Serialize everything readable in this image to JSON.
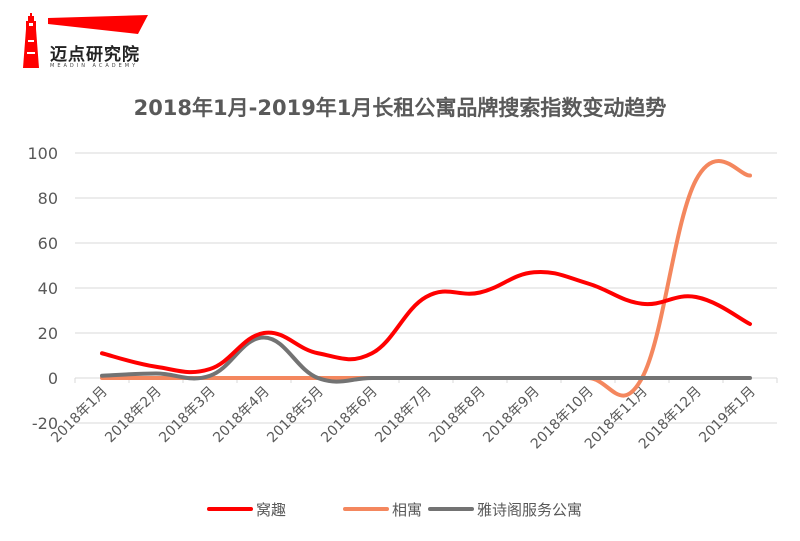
{
  "logo": {
    "name": "迈点研究院",
    "subtitle": "MEADIN ACADEMY",
    "color": "#ff0000"
  },
  "chart_data": {
    "type": "line",
    "title": "2018年1月-2019年1月长租公寓品牌搜索指数变动趋势",
    "xlabel": "",
    "ylabel": "",
    "ylim": [
      -20,
      100
    ],
    "yticks": [
      100,
      80,
      60,
      40,
      20,
      0,
      -20
    ],
    "grid": true,
    "legend_position": "bottom",
    "smooth": true,
    "categories": [
      "2018年1月",
      "2018年2月",
      "2018年3月",
      "2018年4月",
      "2018年5月",
      "2018年6月",
      "2018年7月",
      "2018年8月",
      "2018年9月",
      "2018年10月",
      "2018年11月",
      "2018年12月",
      "2019年1月"
    ],
    "series": [
      {
        "name": "窝趣",
        "color": "#ff0000",
        "values": [
          11,
          5,
          4,
          20,
          11,
          11,
          36,
          38,
          47,
          42,
          33,
          36,
          24
        ]
      },
      {
        "name": "相寓",
        "color": "#f4875e",
        "values": [
          0,
          0,
          0,
          0,
          0,
          0,
          0,
          0,
          0,
          0,
          0,
          88,
          90
        ]
      },
      {
        "name": "雅诗阁服务公寓",
        "color": "#737373",
        "values": [
          1,
          2,
          1,
          18,
          0,
          0,
          0,
          0,
          0,
          0,
          0,
          0,
          0
        ]
      }
    ]
  }
}
